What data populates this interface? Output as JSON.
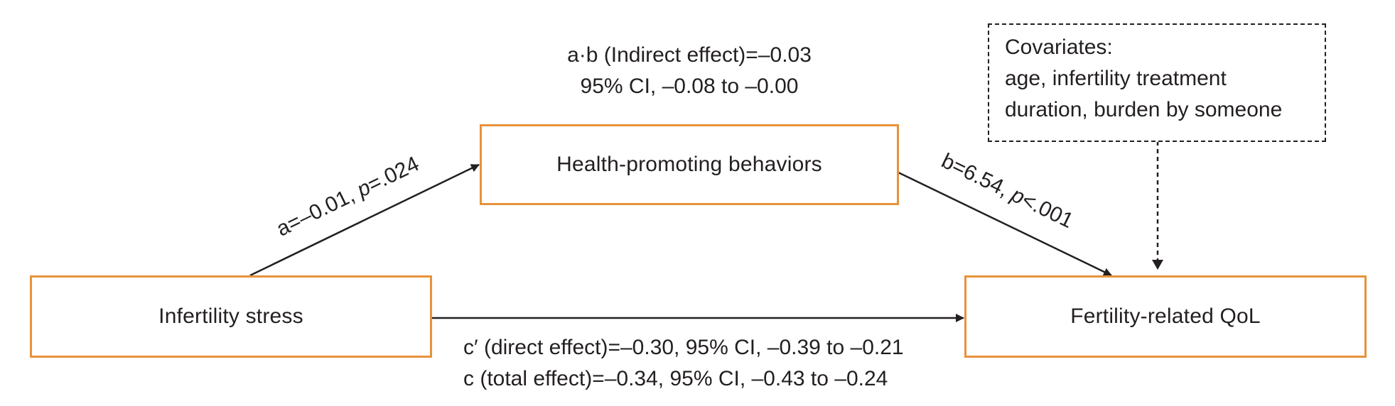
{
  "nodes": {
    "mediator": "Health-promoting behaviors",
    "predictor": "Infertility stress",
    "outcome": "Fertility-related QoL"
  },
  "covariates": {
    "line1": "Covariates:",
    "line2": "age, infertility treatment",
    "line3": "duration, burden by someone"
  },
  "indirect": {
    "line1": "a·b (Indirect effect)=–0.03",
    "line2": "95% CI, –0.08 to –0.00"
  },
  "path_a": {
    "prefix": "a=–0.01, ",
    "p_symbol": "p",
    "p_value": "=.024"
  },
  "path_b": {
    "prefix": "b=6.54, ",
    "p_symbol": "p",
    "p_value": "<.001"
  },
  "direct": {
    "line1": "c′ (direct effect)=–0.30, 95% CI, –0.39 to –0.21",
    "line2": "c (total effect)=–0.34, 95% CI, –0.43 to –0.24"
  },
  "colors": {
    "box_border": "#e8923a",
    "text": "#231f20",
    "arrow": "#231f20"
  }
}
